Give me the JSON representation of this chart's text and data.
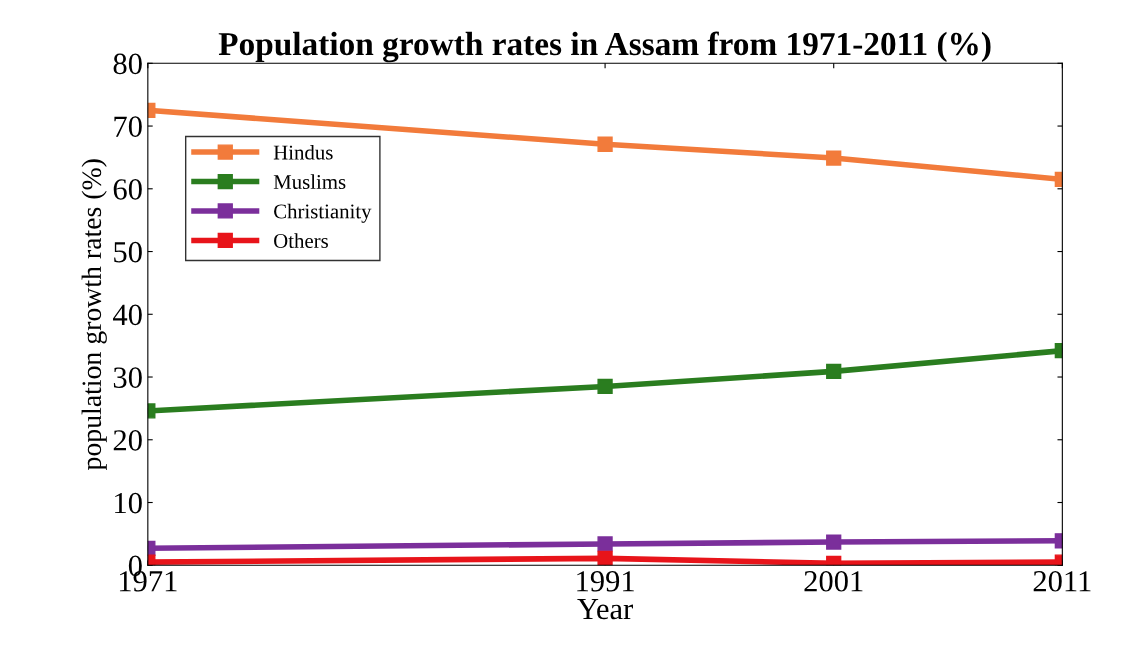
{
  "chart_data": {
    "type": "line",
    "title": "Population growth rates in Assam from 1971-2011 (%)",
    "xlabel": "Year",
    "ylabel": "population growth rates (%)",
    "x": [
      1971,
      1991,
      2001,
      2011
    ],
    "xlim": [
      1971,
      2011
    ],
    "xticks": [
      1971,
      1991,
      2001,
      2011
    ],
    "ylim": [
      0,
      80
    ],
    "yticks": [
      0,
      10,
      20,
      30,
      40,
      50,
      60,
      70,
      80
    ],
    "series": [
      {
        "name": "Hindus",
        "color": "#f27b3b",
        "values": [
          72.5,
          67.1,
          64.9,
          61.5
        ]
      },
      {
        "name": "Muslims",
        "color": "#2a7d1f",
        "values": [
          24.6,
          28.5,
          30.9,
          34.2
        ]
      },
      {
        "name": "Christianity",
        "color": "#7b2f9b",
        "values": [
          2.7,
          3.4,
          3.7,
          3.9
        ]
      },
      {
        "name": "Others",
        "color": "#e8141a",
        "values": [
          0.5,
          1.1,
          0.3,
          0.5
        ]
      }
    ],
    "marker": "square",
    "line_style": "solid",
    "legend": "top left",
    "grid": false
  }
}
